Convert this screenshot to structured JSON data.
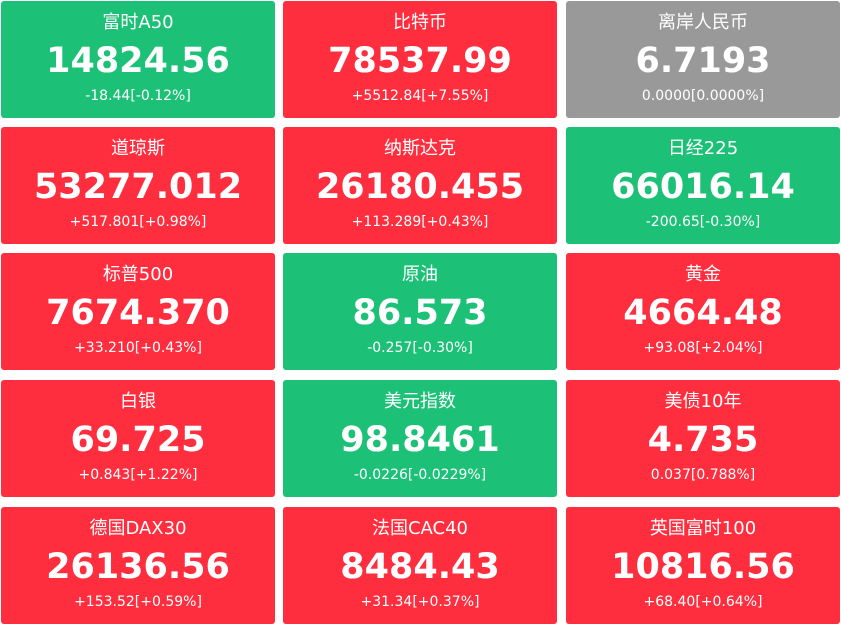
{
  "tiles": [
    {
      "name": "富时A50",
      "value": "14824.56",
      "change": "-18.44[-0.12%]",
      "color": "#1cc177"
    },
    {
      "name": "比特币",
      "value": "78537.99",
      "change": "+5512.84[+7.55%]",
      "color": "#fe2e3f"
    },
    {
      "name": "离岸人民币",
      "value": "6.7193",
      "change": "0.0000[0.0000%]",
      "color": "#999999"
    },
    {
      "name": "道琼斯",
      "value": "53277.012",
      "change": "+517.801[+0.98%]",
      "color": "#fe2e3f"
    },
    {
      "name": "纳斯达克",
      "value": "26180.455",
      "change": "+113.289[+0.43%]",
      "color": "#fe2e3f"
    },
    {
      "name": "日经225",
      "value": "66016.14",
      "change": "-200.65[-0.30%]",
      "color": "#1cc177"
    },
    {
      "name": "标普500",
      "value": "7674.370",
      "change": "+33.210[+0.43%]",
      "color": "#fe2e3f"
    },
    {
      "name": "原油",
      "value": "86.573",
      "change": "-0.257[-0.30%]",
      "color": "#1cc177"
    },
    {
      "name": "黄金",
      "value": "4664.48",
      "change": "+93.08[+2.04%]",
      "color": "#fe2e3f"
    },
    {
      "name": "白银",
      "value": "69.725",
      "change": "+0.843[+1.22%]",
      "color": "#fe2e3f"
    },
    {
      "name": "美元指数",
      "value": "98.8461",
      "change": "-0.0226[-0.0229%]",
      "color": "#1cc177"
    },
    {
      "name": "美债10年",
      "value": "4.735",
      "change": "0.037[0.788%]",
      "color": "#fe2e3f"
    },
    {
      "name": "德国DAX30",
      "value": "26136.56",
      "change": "+153.52[+0.59%]",
      "color": "#fe2e3f"
    },
    {
      "name": "法国CAC40",
      "value": "8484.43",
      "change": "+31.34[+0.37%]",
      "color": "#fe2e3f"
    },
    {
      "name": "英国富时100",
      "value": "10816.56",
      "change": "+68.40[+0.64%]",
      "color": "#fe2e3f"
    }
  ]
}
